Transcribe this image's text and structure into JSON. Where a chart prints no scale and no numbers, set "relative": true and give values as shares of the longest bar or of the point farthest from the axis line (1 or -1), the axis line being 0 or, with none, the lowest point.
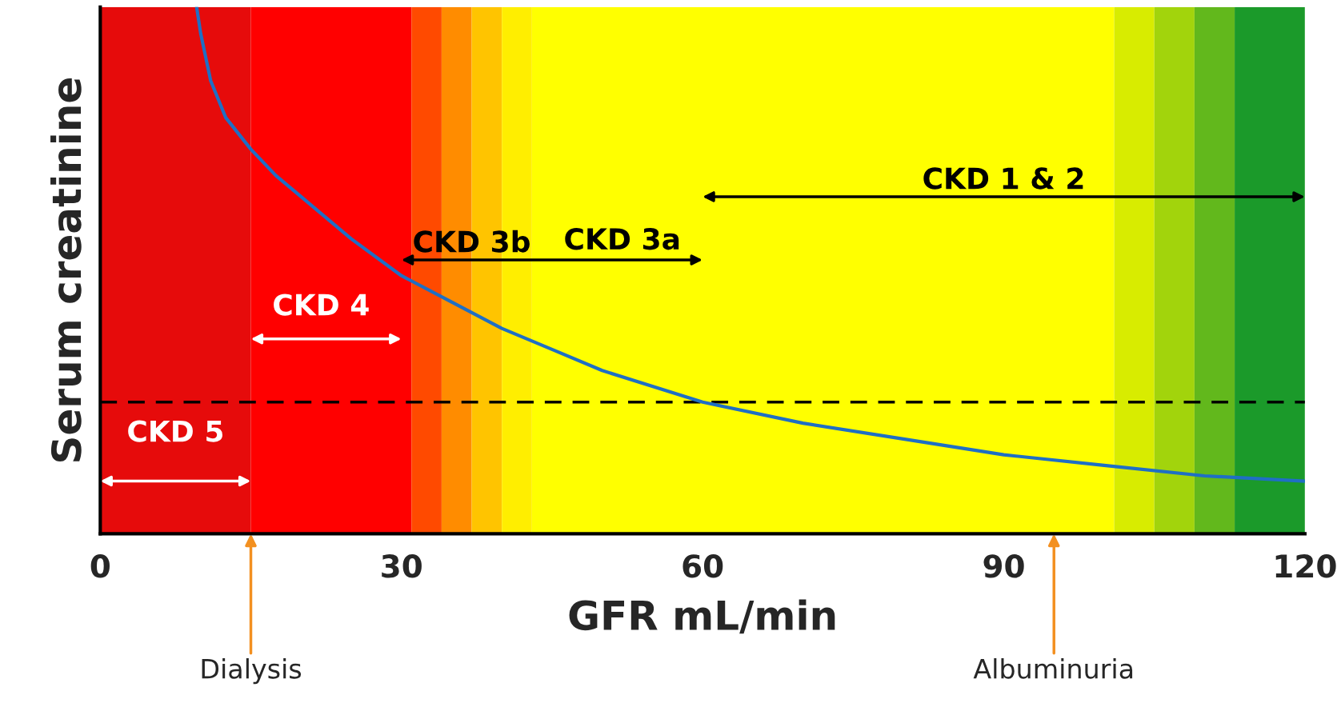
{
  "chart_data": {
    "type": "line",
    "relative": true,
    "xlabel": "GFR mL/min",
    "ylabel": "Serum creatinine",
    "xlim": [
      0,
      120
    ],
    "xticks": [
      0,
      30,
      60,
      90,
      120
    ],
    "grid": false,
    "legend": false,
    "series": [
      {
        "color": "#1f6fc4",
        "x": [
          9.6,
          10,
          11,
          12.5,
          15,
          17.5,
          20,
          25,
          30,
          35,
          40,
          45,
          50,
          60,
          70,
          80,
          90,
          100,
          110,
          120
        ],
        "values": [
          1.0,
          0.95,
          0.86,
          0.79,
          0.73,
          0.68,
          0.64,
          0.56,
          0.49,
          0.44,
          0.39,
          0.35,
          0.31,
          0.25,
          0.21,
          0.18,
          0.15,
          0.13,
          0.11,
          0.1
        ]
      }
    ],
    "ref_lines": [
      {
        "axis": "y",
        "value": 0.25,
        "color": "#000000",
        "line_style": "dashed"
      }
    ],
    "bands": [
      {
        "axis": "x",
        "from": 0,
        "to": 15,
        "color": "#e60b0b"
      },
      {
        "axis": "x",
        "from": 15,
        "to": 31,
        "color": "#ff0000"
      },
      {
        "axis": "x",
        "from": 31,
        "to": 34,
        "color": "#ff4a00"
      },
      {
        "axis": "x",
        "from": 34,
        "to": 37,
        "color": "#ff8c00"
      },
      {
        "axis": "x",
        "from": 37,
        "to": 40,
        "color": "#ffc400"
      },
      {
        "axis": "x",
        "from": 40,
        "to": 43,
        "color": "#ffee00"
      },
      {
        "axis": "x",
        "from": 43,
        "to": 101,
        "color": "#ffff00"
      },
      {
        "axis": "x",
        "from": 101,
        "to": 105,
        "color": "#d8ec00"
      },
      {
        "axis": "x",
        "from": 105,
        "to": 109,
        "color": "#a2d40c"
      },
      {
        "axis": "x",
        "from": 109,
        "to": 113,
        "color": "#62b81c"
      },
      {
        "axis": "x",
        "from": 113,
        "to": 120,
        "color": "#1b9a2a"
      }
    ],
    "annotations": [
      "CKD 5",
      "CKD 4",
      "CKD 3b",
      "CKD 3a",
      "CKD 1 & 2",
      {
        "text": "Dialysis",
        "x": 15,
        "y": 0
      },
      {
        "text": "Albuminuria",
        "x": 95,
        "y": 0
      }
    ]
  }
}
